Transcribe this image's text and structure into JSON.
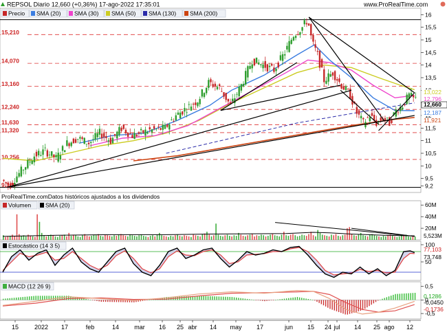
{
  "header": {
    "title": "REPSOL Diario 12,660 (+0,36%) 17-ago-2022 17:35:01",
    "site": "www.ProRealTime.com",
    "source_note": "ProRealTime.comDatos históricos ajustados a los dividendos"
  },
  "chart_data": [
    {
      "type": "candlestick",
      "legend": [
        "Precio",
        "SMA (20)",
        "SMA (30)",
        "SMA (50)",
        "SMA (130)",
        "SMA (200)"
      ],
      "colors": {
        "up": "#2e9e2e",
        "down": "#c62828",
        "sma20": "#3b7de0",
        "sma30": "#ee44cc",
        "sma50": "#cccc22",
        "sma130": "#2a2aa8",
        "sma200": "#cc4411"
      },
      "ylim": [
        9.0,
        16.2
      ],
      "y_ticks": [
        "9,2",
        "9,5",
        "10",
        "10,5",
        "11",
        "11,5",
        "12",
        "12,5",
        "13",
        "13,5",
        "14",
        "14,5",
        "15",
        "15,5",
        "16"
      ],
      "y_tick_values": [
        9.2,
        9.5,
        10,
        10.5,
        11,
        11.5,
        12,
        12.5,
        13,
        13.5,
        14,
        14.5,
        15,
        15.5,
        16
      ],
      "x_ticks": [
        "15",
        "2022",
        "17",
        "feb",
        "14",
        "mar",
        "16",
        "25",
        "abr",
        "14",
        "may",
        "17",
        "jun",
        "15",
        "24",
        "jul",
        "14",
        "25",
        "ago",
        "12"
      ],
      "levels": [
        {
          "label": "15,210",
          "value": 15.21
        },
        {
          "label": "14,070",
          "value": 14.07
        },
        {
          "label": "13,160",
          "value": 13.16
        },
        {
          "label": "12,240",
          "value": 12.24
        },
        {
          "label": "11,630",
          "value": 11.63
        },
        {
          "label": "11,320",
          "value": 11.32
        },
        {
          "label": "10,256",
          "value": 10.256
        },
        {
          "label": "9,150",
          "value": 9.15
        }
      ],
      "right_labels": [
        {
          "label": "13,022",
          "value": 13.022,
          "color": "#cccc22"
        },
        {
          "label": "12,796",
          "value": 12.796,
          "color": "#ee44cc"
        },
        {
          "label": "12,660",
          "value": 12.66,
          "color": "#000000"
        },
        {
          "label": "12,187",
          "value": 12.187,
          "color": "#3b7de0"
        },
        {
          "label": "11,921",
          "value": 11.921,
          "color": "#cc4411"
        }
      ],
      "close_path": [
        [
          0,
          9.45
        ],
        [
          7,
          9.2
        ],
        [
          14,
          9.6
        ],
        [
          22,
          10.0
        ],
        [
          30,
          10.4
        ],
        [
          40,
          10.6
        ],
        [
          50,
          10.3
        ],
        [
          60,
          10.9
        ],
        [
          70,
          11.1
        ],
        [
          80,
          10.9
        ],
        [
          90,
          11.3
        ],
        [
          100,
          11.0
        ],
        [
          110,
          11.5
        ],
        [
          120,
          11.2
        ],
        [
          135,
          11.4
        ],
        [
          150,
          11.5
        ],
        [
          160,
          12.0
        ],
        [
          170,
          12.3
        ],
        [
          180,
          12.6
        ],
        [
          190,
          13.3
        ],
        [
          200,
          13.1
        ],
        [
          210,
          12.4
        ],
        [
          220,
          13.2
        ],
        [
          230,
          14.2
        ],
        [
          240,
          14.0
        ],
        [
          250,
          13.8
        ],
        [
          260,
          14.5
        ],
        [
          268,
          15.2
        ],
        [
          276,
          15.5
        ],
        [
          281,
          15.8
        ],
        [
          285,
          14.9
        ],
        [
          290,
          14.4
        ],
        [
          296,
          13.4
        ],
        [
          304,
          13.7
        ],
        [
          312,
          13.2
        ],
        [
          320,
          12.8
        ],
        [
          326,
          12.1
        ],
        [
          332,
          11.7
        ],
        [
          338,
          12.0
        ],
        [
          344,
          11.7
        ],
        [
          350,
          11.9
        ],
        [
          356,
          11.7
        ],
        [
          362,
          12.2
        ],
        [
          368,
          12.4
        ],
        [
          374,
          12.8
        ],
        [
          378,
          12.66
        ]
      ],
      "sma20": [
        [
          70,
          10.9
        ],
        [
          100,
          11.2
        ],
        [
          130,
          11.3
        ],
        [
          160,
          11.8
        ],
        [
          190,
          12.4
        ],
        [
          210,
          13.0
        ],
        [
          240,
          13.6
        ],
        [
          270,
          14.4
        ],
        [
          286,
          14.8
        ],
        [
          300,
          14.2
        ],
        [
          320,
          13.5
        ],
        [
          340,
          12.7
        ],
        [
          360,
          12.2
        ],
        [
          378,
          12.19
        ]
      ],
      "sma30": [
        [
          80,
          10.8
        ],
        [
          110,
          11.1
        ],
        [
          140,
          11.2
        ],
        [
          170,
          11.6
        ],
        [
          200,
          12.3
        ],
        [
          230,
          13.0
        ],
        [
          260,
          13.7
        ],
        [
          280,
          14.2
        ],
        [
          300,
          14.1
        ],
        [
          320,
          13.8
        ],
        [
          340,
          13.2
        ],
        [
          360,
          12.7
        ],
        [
          378,
          12.8
        ]
      ],
      "sma50": [
        [
          0,
          10.3
        ],
        [
          30,
          10.2
        ],
        [
          60,
          10.5
        ],
        [
          90,
          10.8
        ],
        [
          120,
          11.0
        ],
        [
          150,
          11.3
        ],
        [
          180,
          11.8
        ],
        [
          210,
          12.5
        ],
        [
          240,
          13.1
        ],
        [
          270,
          13.7
        ],
        [
          295,
          14.0
        ],
        [
          320,
          13.9
        ],
        [
          345,
          13.5
        ],
        [
          365,
          13.2
        ],
        [
          378,
          13.02
        ]
      ],
      "sma130": [
        [
          150,
          10.5
        ],
        [
          190,
          10.9
        ],
        [
          230,
          11.3
        ],
        [
          270,
          11.7
        ],
        [
          310,
          12.0
        ],
        [
          350,
          12.3
        ],
        [
          378,
          12.5
        ]
      ],
      "sma200": [
        [
          120,
          10.2
        ],
        [
          160,
          10.4
        ],
        [
          200,
          10.7
        ],
        [
          240,
          11.0
        ],
        [
          280,
          11.3
        ],
        [
          320,
          11.6
        ],
        [
          360,
          11.85
        ],
        [
          378,
          11.92
        ]
      ]
    },
    {
      "type": "bar",
      "legend": [
        "Volumen",
        "SMA (20)"
      ],
      "y_ticks": [
        "60M",
        "40M",
        "20M"
      ],
      "y_tick_values": [
        60,
        40,
        20
      ],
      "ylim": [
        0,
        65
      ],
      "right_label": "5,523M",
      "volumes": [
        8,
        5,
        6,
        7,
        9,
        6,
        44,
        10,
        7,
        8,
        6,
        9,
        7,
        6,
        5,
        44,
        31,
        12,
        8,
        6,
        7,
        9,
        8,
        6,
        5,
        7,
        8,
        9,
        6,
        12,
        7,
        9,
        8,
        6,
        5,
        8,
        10,
        7,
        6,
        7,
        9,
        8,
        10,
        7,
        6,
        9,
        8,
        7,
        6,
        8,
        7,
        9,
        10,
        8,
        7,
        6,
        9,
        8,
        7,
        6,
        8,
        9,
        7,
        6,
        5,
        7,
        8,
        6,
        9,
        12,
        8,
        7,
        6,
        5,
        7,
        6,
        8,
        9,
        7,
        6,
        8,
        7,
        6,
        5,
        9,
        8,
        7,
        6,
        10,
        11,
        14,
        9,
        6,
        8,
        28,
        9,
        7,
        6,
        8,
        9,
        7,
        6,
        8,
        7,
        12,
        9,
        7,
        6,
        8,
        9,
        10,
        6,
        8,
        7,
        9,
        8,
        6,
        7,
        9,
        10,
        8,
        7,
        6,
        9,
        14,
        8,
        7,
        9,
        10,
        8,
        6,
        7,
        9,
        8,
        7,
        10,
        14,
        8,
        6,
        17,
        12,
        9,
        8,
        7,
        6,
        9,
        8,
        10,
        7,
        6,
        8,
        9,
        20,
        22,
        10,
        8,
        7,
        9,
        12,
        8,
        7,
        6,
        9,
        10,
        8,
        7,
        6,
        5,
        7,
        6,
        8,
        9,
        7,
        6,
        5,
        6,
        8,
        7,
        9,
        6,
        5,
        7,
        6
      ],
      "sma": [
        [
          0,
          6
        ],
        [
          50,
          8
        ],
        [
          100,
          9
        ],
        [
          150,
          9
        ],
        [
          190,
          10
        ],
        [
          260,
          11
        ],
        [
          285,
          13
        ],
        [
          300,
          12
        ],
        [
          320,
          10
        ],
        [
          350,
          8
        ],
        [
          378,
          7
        ]
      ]
    },
    {
      "type": "line",
      "legend": [
        "Estocástico (14 3 5)"
      ],
      "y_ticks": [
        "100",
        "50"
      ],
      "y_tick_values": [
        100,
        50
      ],
      "ylim": [
        0,
        100
      ],
      "right_labels": [
        "77,103",
        "73,748"
      ],
      "k": [
        [
          0,
          20
        ],
        [
          8,
          65
        ],
        [
          16,
          85
        ],
        [
          24,
          55
        ],
        [
          32,
          75
        ],
        [
          40,
          85
        ],
        [
          48,
          40
        ],
        [
          56,
          70
        ],
        [
          64,
          90
        ],
        [
          72,
          50
        ],
        [
          80,
          30
        ],
        [
          88,
          20
        ],
        [
          96,
          50
        ],
        [
          104,
          80
        ],
        [
          112,
          90
        ],
        [
          120,
          45
        ],
        [
          128,
          20
        ],
        [
          136,
          10
        ],
        [
          144,
          40
        ],
        [
          152,
          80
        ],
        [
          160,
          90
        ],
        [
          168,
          60
        ],
        [
          176,
          70
        ],
        [
          184,
          85
        ],
        [
          192,
          90
        ],
        [
          200,
          60
        ],
        [
          208,
          35
        ],
        [
          216,
          55
        ],
        [
          224,
          80
        ],
        [
          232,
          70
        ],
        [
          240,
          75
        ],
        [
          248,
          85
        ],
        [
          256,
          80
        ],
        [
          264,
          92
        ],
        [
          272,
          95
        ],
        [
          280,
          70
        ],
        [
          288,
          40
        ],
        [
          296,
          15
        ],
        [
          304,
          5
        ],
        [
          312,
          20
        ],
        [
          320,
          15
        ],
        [
          328,
          35
        ],
        [
          336,
          15
        ],
        [
          344,
          30
        ],
        [
          352,
          10
        ],
        [
          360,
          25
        ],
        [
          368,
          80
        ],
        [
          374,
          82
        ],
        [
          378,
          77
        ]
      ],
      "d": [
        [
          0,
          25
        ],
        [
          8,
          50
        ],
        [
          16,
          75
        ],
        [
          24,
          65
        ],
        [
          32,
          70
        ],
        [
          40,
          78
        ],
        [
          48,
          55
        ],
        [
          56,
          60
        ],
        [
          64,
          80
        ],
        [
          72,
          60
        ],
        [
          80,
          40
        ],
        [
          88,
          28
        ],
        [
          96,
          40
        ],
        [
          104,
          68
        ],
        [
          112,
          82
        ],
        [
          120,
          60
        ],
        [
          128,
          30
        ],
        [
          136,
          18
        ],
        [
          144,
          30
        ],
        [
          152,
          65
        ],
        [
          160,
          82
        ],
        [
          168,
          70
        ],
        [
          176,
          68
        ],
        [
          184,
          80
        ],
        [
          192,
          85
        ],
        [
          200,
          70
        ],
        [
          208,
          45
        ],
        [
          216,
          50
        ],
        [
          224,
          70
        ],
        [
          232,
          72
        ],
        [
          240,
          74
        ],
        [
          248,
          80
        ],
        [
          256,
          80
        ],
        [
          264,
          88
        ],
        [
          272,
          92
        ],
        [
          280,
          80
        ],
        [
          288,
          55
        ],
        [
          296,
          25
        ],
        [
          304,
          12
        ],
        [
          312,
          15
        ],
        [
          320,
          18
        ],
        [
          328,
          28
        ],
        [
          336,
          22
        ],
        [
          344,
          25
        ],
        [
          352,
          18
        ],
        [
          360,
          20
        ],
        [
          368,
          60
        ],
        [
          374,
          75
        ],
        [
          378,
          74
        ]
      ]
    },
    {
      "type": "bar",
      "legend": [
        "MACD (12 26 9)"
      ],
      "y_ticks": [
        "0,5",
        "0",
        "-0,5"
      ],
      "y_tick_values": [
        0.5,
        0,
        -0.5
      ],
      "ylim": [
        -0.65,
        0.62
      ],
      "right_labels": [
        "0,1286",
        "-0,0450",
        "-0,1736"
      ],
      "macd": [
        [
          0,
          -0.2
        ],
        [
          30,
          -0.05
        ],
        [
          60,
          0.12
        ],
        [
          90,
          0.05
        ],
        [
          120,
          -0.02
        ],
        [
          150,
          0.08
        ],
        [
          180,
          0.22
        ],
        [
          210,
          0.3
        ],
        [
          240,
          0.25
        ],
        [
          270,
          0.35
        ],
        [
          285,
          0.32
        ],
        [
          300,
          0.05
        ],
        [
          315,
          -0.35
        ],
        [
          330,
          -0.52
        ],
        [
          345,
          -0.45
        ],
        [
          360,
          -0.3
        ],
        [
          378,
          -0.05
        ]
      ],
      "signal": [
        [
          0,
          -0.22
        ],
        [
          30,
          -0.12
        ],
        [
          60,
          0.05
        ],
        [
          90,
          0.08
        ],
        [
          120,
          0.02
        ],
        [
          150,
          0.03
        ],
        [
          180,
          0.15
        ],
        [
          210,
          0.25
        ],
        [
          240,
          0.27
        ],
        [
          270,
          0.3
        ],
        [
          285,
          0.32
        ],
        [
          300,
          0.2
        ],
        [
          315,
          -0.1
        ],
        [
          330,
          -0.35
        ],
        [
          345,
          -0.45
        ],
        [
          360,
          -0.4
        ],
        [
          378,
          -0.17
        ]
      ]
    }
  ]
}
